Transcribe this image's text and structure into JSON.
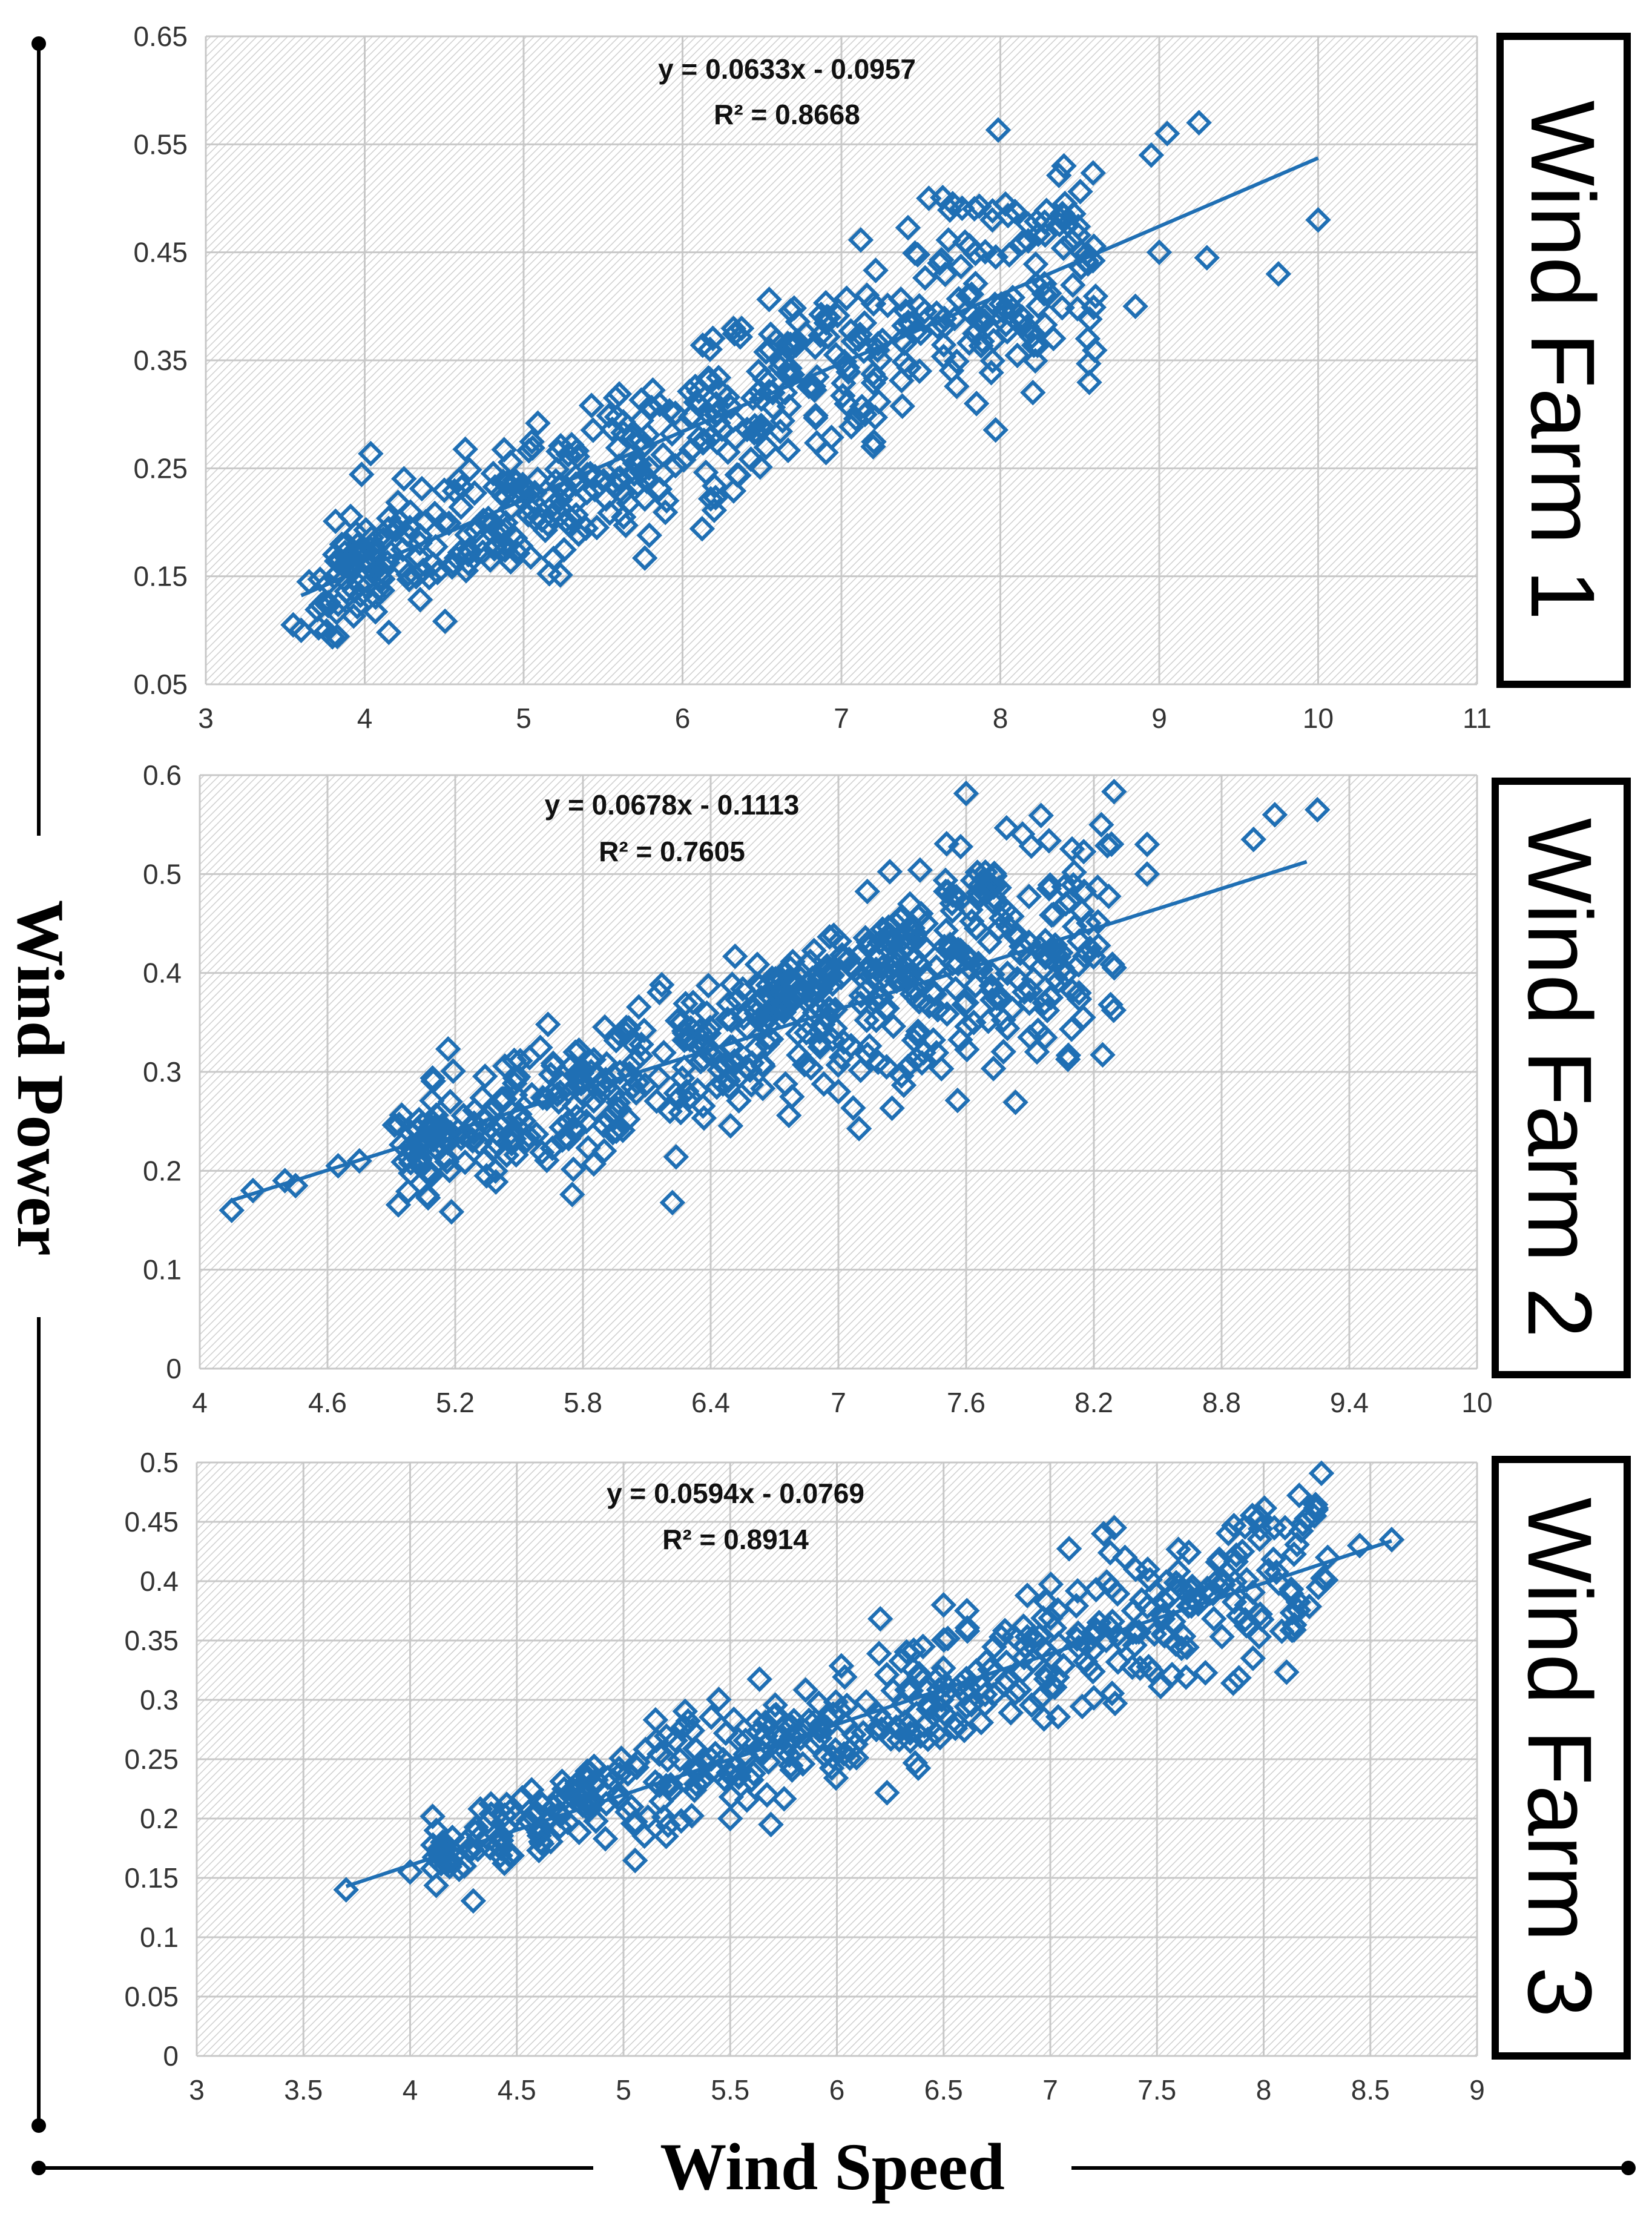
{
  "axes": {
    "x_title": "Wind Speed",
    "y_title": "Wind Power"
  },
  "colors": {
    "marker": "#1f6fb4",
    "trendline": "#1f6fb4",
    "grid": "#c8c8c8",
    "hatch": "#cfcfcf",
    "frame": "#000000"
  },
  "chart_data": [
    {
      "type": "scatter",
      "label": "Wind Farm 1",
      "title": "",
      "xlabel": "Wind Speed",
      "ylabel": "Wind Power",
      "xlim": [
        3,
        11
      ],
      "ylim": [
        0.05,
        0.65
      ],
      "xticks": [
        "3",
        "4",
        "5",
        "6",
        "7",
        "8",
        "9",
        "10",
        "11"
      ],
      "yticks": [
        "0.05",
        "0.15",
        "0.25",
        "0.35",
        "0.45",
        "0.55",
        "0.65"
      ],
      "equation": "y = 0.0633x - 0.0957",
      "r2": "R² = 0.8668",
      "trendline": {
        "slope": 0.0633,
        "intercept": -0.0957,
        "x_range": [
          3.6,
          10.0
        ]
      },
      "outliers": [
        [
          3.55,
          0.105
        ],
        [
          3.6,
          0.1
        ],
        [
          3.65,
          0.145
        ],
        [
          7.55,
          0.5
        ],
        [
          7.7,
          0.495
        ],
        [
          7.95,
          0.48
        ],
        [
          8.4,
          0.53
        ],
        [
          8.45,
          0.46
        ],
        [
          8.55,
          0.37
        ],
        [
          8.95,
          0.54
        ],
        [
          9.05,
          0.56
        ],
        [
          9.25,
          0.57
        ],
        [
          9.0,
          0.45
        ],
        [
          9.3,
          0.445
        ],
        [
          9.75,
          0.43
        ],
        [
          10.0,
          0.48
        ],
        [
          7.2,
          0.27
        ],
        [
          5.9,
          0.22
        ],
        [
          7.85,
          0.31
        ],
        [
          8.85,
          0.4
        ]
      ],
      "cloud": {
        "n": 520,
        "x_min": 3.7,
        "x_max": 8.6,
        "spread": 0.045,
        "seed": 11
      }
    },
    {
      "type": "scatter",
      "label": "Wind Farm 2",
      "title": "",
      "xlabel": "Wind Speed",
      "ylabel": "Wind Power",
      "xlim": [
        4,
        10
      ],
      "ylim": [
        0,
        0.6
      ],
      "xticks": [
        "4",
        "4.6",
        "5.2",
        "5.8",
        "6.4",
        "7",
        "7.6",
        "8.2",
        "8.8",
        "9.4",
        "10"
      ],
      "yticks": [
        "0",
        "0.1",
        "0.2",
        "0.3",
        "0.4",
        "0.5",
        "0.6"
      ],
      "equation": "y = 0.0678x - 0.1113",
      "r2": "R² = 0.7605",
      "trendline": {
        "slope": 0.0678,
        "intercept": -0.1113,
        "x_range": [
          4.15,
          9.2
        ]
      },
      "outliers": [
        [
          4.15,
          0.16
        ],
        [
          4.25,
          0.18
        ],
        [
          4.4,
          0.19
        ],
        [
          4.45,
          0.185
        ],
        [
          4.65,
          0.205
        ],
        [
          4.75,
          0.21
        ],
        [
          8.45,
          0.53
        ],
        [
          8.45,
          0.5
        ],
        [
          8.95,
          0.535
        ],
        [
          9.05,
          0.56
        ],
        [
          9.25,
          0.565
        ],
        [
          7.9,
          0.335
        ],
        [
          8.15,
          0.355
        ],
        [
          5.9,
          0.22
        ],
        [
          7.0,
          0.28
        ]
      ],
      "cloud": {
        "n": 520,
        "x_min": 4.9,
        "x_max": 8.3,
        "spread": 0.045,
        "seed": 23
      },
      "upper_band": {
        "n": 90,
        "x_min": 6.6,
        "x_max": 7.75,
        "slope": 0.11,
        "intercept": -0.36,
        "spread": 0.012,
        "seed": 31
      }
    },
    {
      "type": "scatter",
      "label": "Wind Farm 3",
      "title": "",
      "xlabel": "Wind Speed",
      "ylabel": "Wind Power",
      "xlim": [
        3,
        9
      ],
      "ylim": [
        0,
        0.5
      ],
      "xticks": [
        "3",
        "3.5",
        "4",
        "4.5",
        "5",
        "5.5",
        "6",
        "6.5",
        "7",
        "7.5",
        "8",
        "8.5",
        "9"
      ],
      "yticks": [
        "0",
        "0.05",
        "0.1",
        "0.15",
        "0.2",
        "0.25",
        "0.3",
        "0.35",
        "0.4",
        "0.45",
        "0.5"
      ],
      "equation": "y = 0.0594x - 0.0769",
      "r2": "R² = 0.8914",
      "trendline": {
        "slope": 0.0594,
        "intercept": -0.0769,
        "x_range": [
          3.7,
          8.6
        ]
      },
      "outliers": [
        [
          3.7,
          0.14
        ],
        [
          4.0,
          0.155
        ],
        [
          6.5,
          0.38
        ],
        [
          7.25,
          0.44
        ],
        [
          7.3,
          0.445
        ],
        [
          7.35,
          0.42
        ],
        [
          7.4,
          0.41
        ],
        [
          8.05,
          0.445
        ],
        [
          8.1,
          0.445
        ],
        [
          7.9,
          0.425
        ],
        [
          7.95,
          0.335
        ],
        [
          8.3,
          0.42
        ],
        [
          8.45,
          0.43
        ],
        [
          8.6,
          0.435
        ],
        [
          5.2,
          0.185
        ],
        [
          5.5,
          0.2
        ]
      ],
      "cloud": {
        "n": 480,
        "x_min": 4.1,
        "x_max": 8.3,
        "spread": 0.028,
        "seed": 47
      }
    }
  ]
}
